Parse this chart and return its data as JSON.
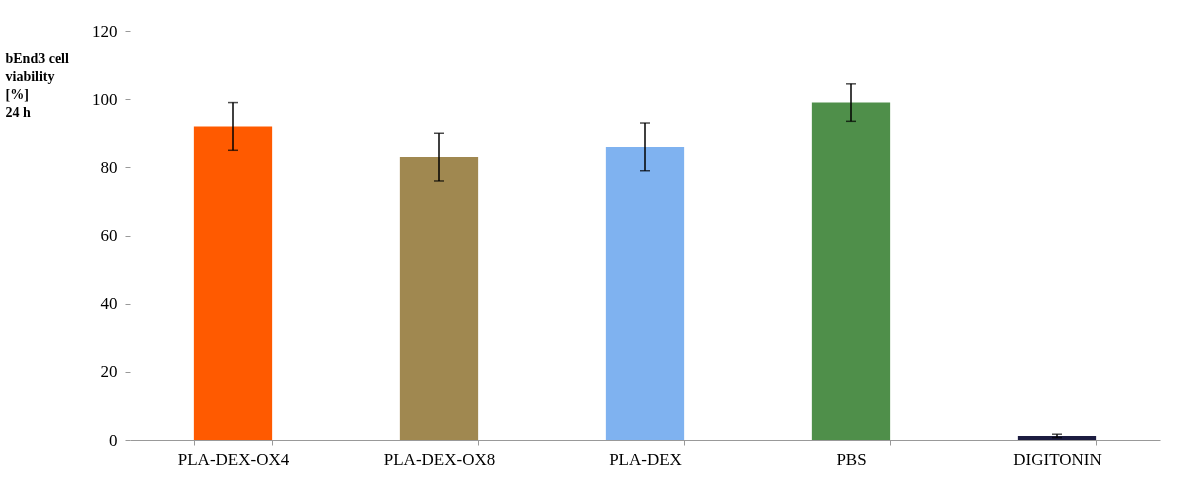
{
  "chart_data": {
    "type": "bar",
    "ylabel": "bEnd3 cell\nviability\n[%]\n24 h",
    "categories": [
      "PLA-DEX-OX4",
      "PLA-DEX-OX8",
      "PLA-DEX",
      "PBS",
      "DIGITONIN"
    ],
    "values": [
      92,
      83,
      86,
      99,
      1.2
    ],
    "errors": [
      7,
      7,
      7,
      5.5,
      0.5
    ],
    "colors": [
      "#ff5a00",
      "#a08850",
      "#7fb2f0",
      "#4f8f4a",
      "#1c1c40"
    ],
    "ylim": [
      0,
      120
    ],
    "yticks": [
      0,
      20,
      40,
      60,
      80,
      100,
      120
    ],
    "grid": false,
    "legend": false
  }
}
